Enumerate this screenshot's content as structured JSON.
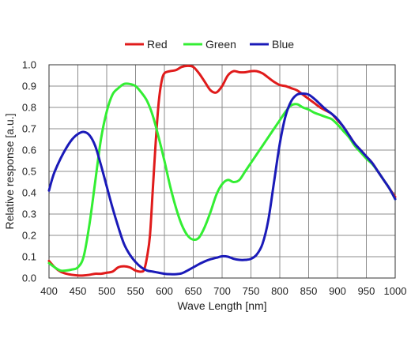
{
  "chart_data": {
    "type": "line",
    "xlabel": "Wave Length [nm]",
    "ylabel": "Relative response [a.u.]",
    "xlim": [
      400,
      1000
    ],
    "ylim": [
      0,
      1.0
    ],
    "xticks": [
      400,
      450,
      500,
      550,
      600,
      650,
      700,
      750,
      800,
      850,
      900,
      950,
      1000
    ],
    "yticks": [
      "0.0",
      "0.1",
      "0.2",
      "0.3",
      "0.4",
      "0.5",
      "0.6",
      "0.7",
      "0.8",
      "0.9",
      "1.0"
    ],
    "grid": true,
    "legend_position": "top-center",
    "series": [
      {
        "name": "Red",
        "color": "#e01b1b",
        "points": [
          [
            400,
            0.08
          ],
          [
            410,
            0.05
          ],
          [
            420,
            0.03
          ],
          [
            430,
            0.02
          ],
          [
            440,
            0.015
          ],
          [
            450,
            0.012
          ],
          [
            460,
            0.012
          ],
          [
            470,
            0.015
          ],
          [
            480,
            0.02
          ],
          [
            490,
            0.02
          ],
          [
            500,
            0.025
          ],
          [
            510,
            0.03
          ],
          [
            520,
            0.05
          ],
          [
            530,
            0.055
          ],
          [
            540,
            0.05
          ],
          [
            550,
            0.035
          ],
          [
            560,
            0.03
          ],
          [
            565,
            0.04
          ],
          [
            570,
            0.1
          ],
          [
            575,
            0.2
          ],
          [
            580,
            0.42
          ],
          [
            585,
            0.64
          ],
          [
            590,
            0.82
          ],
          [
            595,
            0.92
          ],
          [
            600,
            0.96
          ],
          [
            610,
            0.97
          ],
          [
            620,
            0.975
          ],
          [
            630,
            0.99
          ],
          [
            640,
            0.995
          ],
          [
            650,
            0.99
          ],
          [
            660,
            0.96
          ],
          [
            670,
            0.92
          ],
          [
            680,
            0.88
          ],
          [
            690,
            0.87
          ],
          [
            700,
            0.9
          ],
          [
            710,
            0.95
          ],
          [
            720,
            0.97
          ],
          [
            730,
            0.965
          ],
          [
            740,
            0.965
          ],
          [
            750,
            0.97
          ],
          [
            760,
            0.97
          ],
          [
            770,
            0.96
          ],
          [
            780,
            0.94
          ],
          [
            790,
            0.92
          ],
          [
            800,
            0.905
          ],
          [
            810,
            0.9
          ],
          [
            820,
            0.89
          ],
          [
            830,
            0.88
          ],
          [
            840,
            0.86
          ],
          [
            850,
            0.84
          ],
          [
            860,
            0.82
          ],
          [
            870,
            0.8
          ],
          [
            880,
            0.785
          ],
          [
            890,
            0.77
          ],
          [
            900,
            0.74
          ],
          [
            910,
            0.71
          ],
          [
            920,
            0.67
          ],
          [
            930,
            0.63
          ],
          [
            940,
            0.6
          ],
          [
            950,
            0.57
          ],
          [
            960,
            0.54
          ],
          [
            970,
            0.5
          ],
          [
            980,
            0.46
          ],
          [
            990,
            0.42
          ],
          [
            1000,
            0.38
          ]
        ]
      },
      {
        "name": "Green",
        "color": "#33ee33",
        "points": [
          [
            400,
            0.07
          ],
          [
            410,
            0.05
          ],
          [
            420,
            0.035
          ],
          [
            430,
            0.035
          ],
          [
            440,
            0.04
          ],
          [
            450,
            0.05
          ],
          [
            460,
            0.1
          ],
          [
            470,
            0.25
          ],
          [
            480,
            0.45
          ],
          [
            490,
            0.65
          ],
          [
            500,
            0.78
          ],
          [
            510,
            0.86
          ],
          [
            520,
            0.89
          ],
          [
            530,
            0.91
          ],
          [
            540,
            0.91
          ],
          [
            550,
            0.9
          ],
          [
            560,
            0.87
          ],
          [
            570,
            0.83
          ],
          [
            580,
            0.76
          ],
          [
            590,
            0.66
          ],
          [
            600,
            0.55
          ],
          [
            610,
            0.43
          ],
          [
            620,
            0.33
          ],
          [
            630,
            0.25
          ],
          [
            640,
            0.2
          ],
          [
            650,
            0.18
          ],
          [
            660,
            0.19
          ],
          [
            670,
            0.24
          ],
          [
            680,
            0.31
          ],
          [
            690,
            0.39
          ],
          [
            700,
            0.44
          ],
          [
            710,
            0.46
          ],
          [
            720,
            0.45
          ],
          [
            730,
            0.46
          ],
          [
            740,
            0.5
          ],
          [
            750,
            0.54
          ],
          [
            760,
            0.58
          ],
          [
            770,
            0.62
          ],
          [
            780,
            0.66
          ],
          [
            790,
            0.7
          ],
          [
            800,
            0.74
          ],
          [
            810,
            0.78
          ],
          [
            820,
            0.81
          ],
          [
            830,
            0.815
          ],
          [
            840,
            0.8
          ],
          [
            850,
            0.79
          ],
          [
            860,
            0.775
          ],
          [
            870,
            0.765
          ],
          [
            880,
            0.755
          ],
          [
            890,
            0.745
          ],
          [
            900,
            0.72
          ],
          [
            910,
            0.69
          ],
          [
            920,
            0.66
          ],
          [
            930,
            0.62
          ],
          [
            940,
            0.59
          ],
          [
            950,
            0.56
          ],
          [
            960,
            0.535
          ],
          [
            970,
            0.5
          ],
          [
            980,
            0.46
          ],
          [
            990,
            0.42
          ],
          [
            1000,
            0.37
          ]
        ]
      },
      {
        "name": "Blue",
        "color": "#1a1ab8",
        "points": [
          [
            400,
            0.41
          ],
          [
            405,
            0.46
          ],
          [
            410,
            0.5
          ],
          [
            420,
            0.56
          ],
          [
            430,
            0.61
          ],
          [
            440,
            0.65
          ],
          [
            450,
            0.675
          ],
          [
            460,
            0.685
          ],
          [
            470,
            0.67
          ],
          [
            480,
            0.62
          ],
          [
            490,
            0.53
          ],
          [
            500,
            0.43
          ],
          [
            510,
            0.33
          ],
          [
            520,
            0.24
          ],
          [
            530,
            0.16
          ],
          [
            540,
            0.11
          ],
          [
            550,
            0.075
          ],
          [
            560,
            0.05
          ],
          [
            570,
            0.035
          ],
          [
            580,
            0.03
          ],
          [
            590,
            0.025
          ],
          [
            600,
            0.02
          ],
          [
            610,
            0.018
          ],
          [
            620,
            0.018
          ],
          [
            630,
            0.022
          ],
          [
            640,
            0.035
          ],
          [
            650,
            0.05
          ],
          [
            660,
            0.065
          ],
          [
            670,
            0.078
          ],
          [
            680,
            0.088
          ],
          [
            690,
            0.095
          ],
          [
            700,
            0.102
          ],
          [
            710,
            0.1
          ],
          [
            720,
            0.09
          ],
          [
            730,
            0.085
          ],
          [
            740,
            0.085
          ],
          [
            750,
            0.09
          ],
          [
            760,
            0.11
          ],
          [
            770,
            0.16
          ],
          [
            780,
            0.27
          ],
          [
            790,
            0.45
          ],
          [
            800,
            0.63
          ],
          [
            810,
            0.76
          ],
          [
            820,
            0.83
          ],
          [
            830,
            0.86
          ],
          [
            840,
            0.865
          ],
          [
            850,
            0.86
          ],
          [
            860,
            0.84
          ],
          [
            870,
            0.815
          ],
          [
            880,
            0.79
          ],
          [
            890,
            0.77
          ],
          [
            900,
            0.745
          ],
          [
            910,
            0.71
          ],
          [
            920,
            0.67
          ],
          [
            930,
            0.63
          ],
          [
            940,
            0.6
          ],
          [
            950,
            0.57
          ],
          [
            960,
            0.54
          ],
          [
            970,
            0.5
          ],
          [
            980,
            0.46
          ],
          [
            990,
            0.42
          ],
          [
            1000,
            0.37
          ]
        ]
      }
    ]
  }
}
